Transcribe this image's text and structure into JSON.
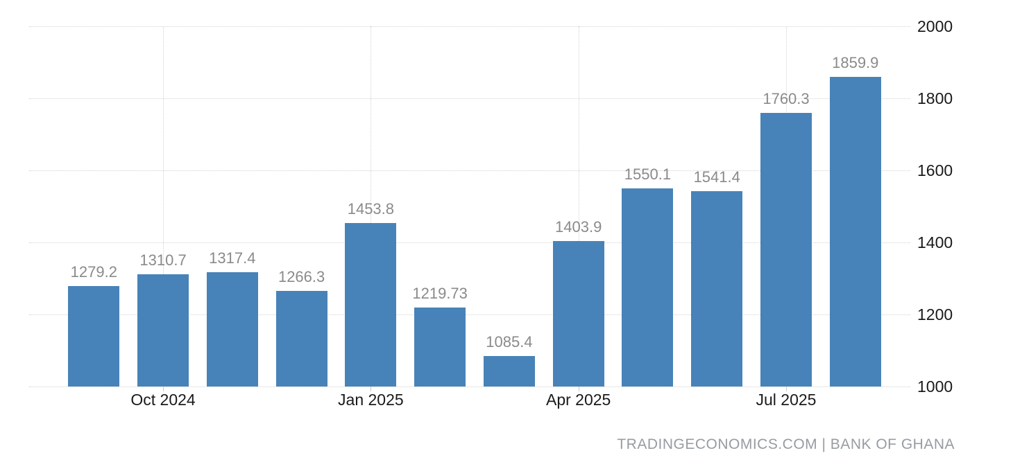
{
  "chart_data": {
    "type": "bar",
    "title": "",
    "values": [
      1279.2,
      1310.7,
      1317.4,
      1266.3,
      1453.8,
      1219.73,
      1085.4,
      1403.9,
      1550.1,
      1541.4,
      1760.3,
      1859.9
    ],
    "value_labels": [
      "1279.2",
      "1310.7",
      "1317.4",
      "1266.3",
      "1453.8",
      "1219.73",
      "1085.4",
      "1403.9",
      "1550.1",
      "1541.4",
      "1760.3",
      "1859.9"
    ],
    "x_ticks": [
      {
        "label": "Oct 2024",
        "bar_index": 1
      },
      {
        "label": "Jan 2025",
        "bar_index": 4
      },
      {
        "label": "Apr 2025",
        "bar_index": 7
      },
      {
        "label": "Jul 2025",
        "bar_index": 10
      }
    ],
    "y_ticks": [
      1000,
      1200,
      1400,
      1600,
      1800,
      2000
    ],
    "ylim": [
      1000,
      2000
    ],
    "grid": "dotted horizontal and vertical",
    "legend": "none",
    "colors": {
      "bar": "#4783b8",
      "grid": "#d2d2d2",
      "value_label": "#8a8a8a",
      "axis_label": "#1a1a1a",
      "attribution": "#979ca2",
      "background": "#ffffff"
    }
  },
  "attribution": {
    "text": "TRADINGECONOMICS.COM | BANK OF GHANA"
  }
}
